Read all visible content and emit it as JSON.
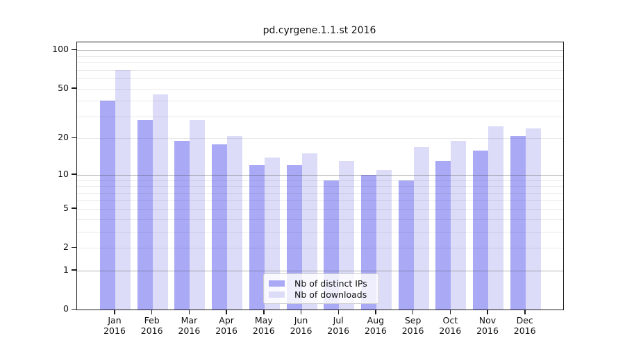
{
  "title": "pd.cyrgene.1.1.st 2016",
  "chart_data": {
    "type": "bar",
    "title": "pd.cyrgene.1.1.st 2016",
    "categories": [
      "Jan 2016",
      "Feb 2016",
      "Mar 2016",
      "Apr 2016",
      "May 2016",
      "Jun 2016",
      "Jul 2016",
      "Aug 2016",
      "Sep 2016",
      "Oct 2016",
      "Nov 2016",
      "Dec 2016"
    ],
    "x_tick_months": [
      "Jan",
      "Feb",
      "Mar",
      "Apr",
      "May",
      "Jun",
      "Jul",
      "Aug",
      "Sep",
      "Oct",
      "Nov",
      "Dec"
    ],
    "x_tick_year": "2016",
    "series": [
      {
        "name": "Nb of distinct IPs",
        "color": "#a9a9f6",
        "values": [
          40,
          28,
          19,
          18,
          12,
          12,
          9,
          10,
          9,
          13,
          16,
          21
        ]
      },
      {
        "name": "Nb of downloads",
        "color": "#dcdcf8",
        "values": [
          70,
          45,
          28,
          21,
          14,
          15,
          13,
          11,
          17,
          19,
          25,
          24
        ]
      }
    ],
    "yscale": "log1p",
    "ylim": [
      0,
      115
    ],
    "ytick_values": [
      0,
      1,
      2,
      5,
      10,
      20,
      50,
      100
    ],
    "ytick_labels": [
      "0",
      "1",
      "2",
      "5",
      "10",
      "20",
      "50",
      "100"
    ],
    "major_grid_values": [
      1,
      10,
      100
    ],
    "minor_grid_values": [
      2,
      3,
      4,
      5,
      6,
      7,
      8,
      9,
      20,
      30,
      40,
      50,
      60,
      70,
      80,
      90
    ],
    "grid": true,
    "legend_position": "bottom-center"
  },
  "legend": {
    "entries": [
      {
        "label": "Nb of distinct IPs",
        "color": "#a9a9f6"
      },
      {
        "label": "Nb of downloads",
        "color": "#dcdcf8"
      }
    ]
  },
  "colors": {
    "background": "#ffffff",
    "spine": "#1a1a1a",
    "grid_major": "rgba(70,70,70,0.42)",
    "grid_minor": "rgba(70,70,70,0.12)",
    "bar_distinct_ips": "#a9a9f6",
    "bar_downloads": "#dcdcf8"
  }
}
